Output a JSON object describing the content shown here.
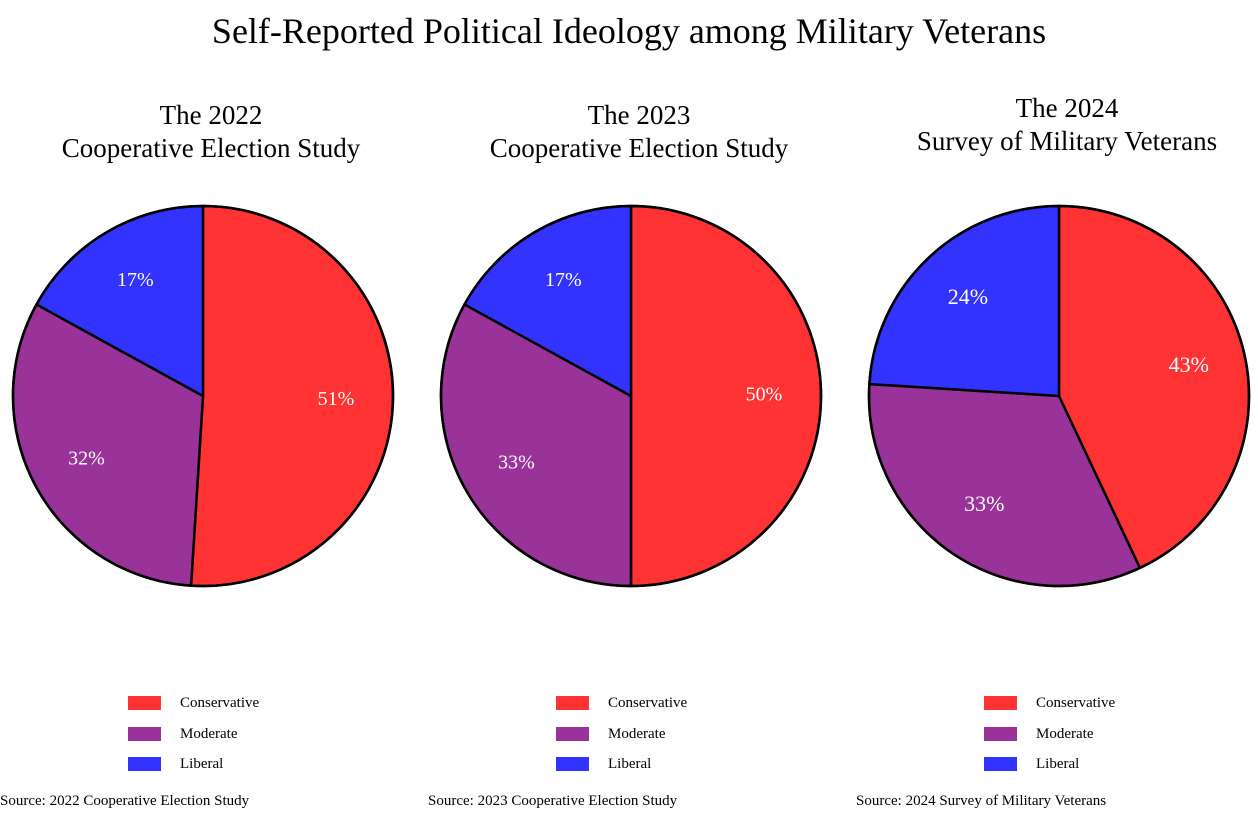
{
  "title": "Self-Reported Political Ideology among Military Veterans",
  "colors": {
    "Conservative": "#ff3333",
    "Moderate": "#993399",
    "Liberal": "#3333ff"
  },
  "chart_data": [
    {
      "type": "pie",
      "title_lines": [
        "The 2022",
        "Cooperative Election Study"
      ],
      "categories": [
        "Conservative",
        "Moderate",
        "Liberal"
      ],
      "values": [
        51,
        32,
        17
      ],
      "labels": [
        "51%",
        "32%",
        "17%"
      ],
      "legend": [
        "Conservative",
        "Moderate",
        "Liberal"
      ],
      "source": "Source: 2022 Cooperative Election Study"
    },
    {
      "type": "pie",
      "title_lines": [
        "The 2023",
        "Cooperative Election Study"
      ],
      "categories": [
        "Conservative",
        "Moderate",
        "Liberal"
      ],
      "values": [
        50,
        33,
        17
      ],
      "labels": [
        "50%",
        "33%",
        "17%"
      ],
      "legend": [
        "Conservative",
        "Moderate",
        "Liberal"
      ],
      "source": "Source: 2023 Cooperative Election Study"
    },
    {
      "type": "pie",
      "title_lines": [
        "The 2024",
        "Survey of Military Veterans"
      ],
      "categories": [
        "Conservative",
        "Moderate",
        "Liberal"
      ],
      "values": [
        43,
        33,
        24
      ],
      "labels": [
        "43%",
        "33%",
        "24%"
      ],
      "legend": [
        "Conservative",
        "Moderate",
        "Liberal"
      ],
      "source": "Source: 2024 Survey of Military Veterans"
    }
  ]
}
